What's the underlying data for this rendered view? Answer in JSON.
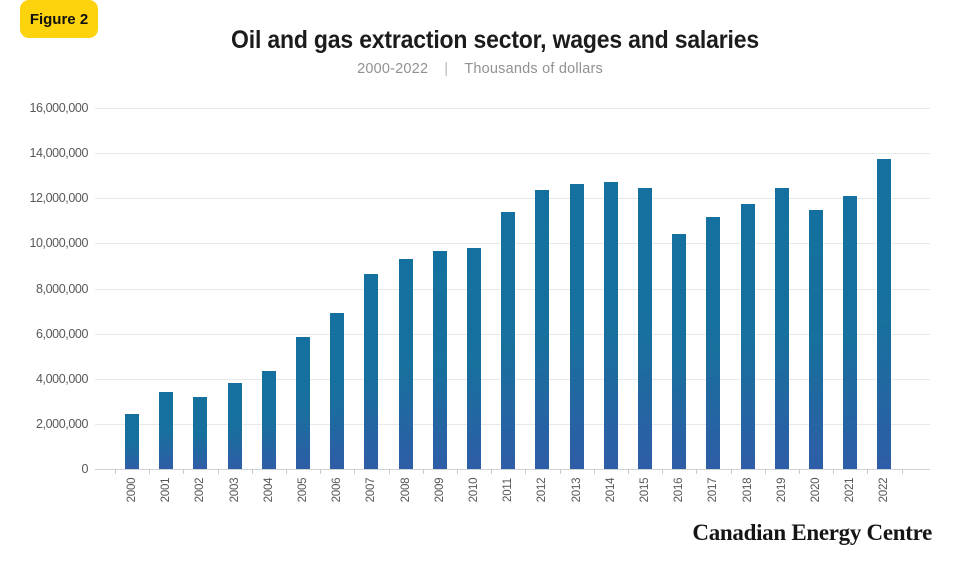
{
  "figure_badge": {
    "label": "Figure 2",
    "bg_color": "#FCD30D",
    "text_color": "#111111"
  },
  "header": {
    "title": "Oil and gas extraction sector, wages and salaries",
    "subtitle_range": "2000-2022",
    "subtitle_separator": "|",
    "subtitle_units": "Thousands of dollars"
  },
  "footer": {
    "brand": "Canadian Energy Centre"
  },
  "colors": {
    "bar_gradient_top": "#14719F",
    "bar_gradient_mid": "#17709D",
    "bar_gradient_bottom": "#2E5DA7",
    "gridline": "#e9e9ea",
    "axis_line": "#cfd1d2",
    "tick": "#c9cbcd",
    "axis_text": "#57585a"
  },
  "chart_data": {
    "type": "bar",
    "title": "Oil and gas extraction sector, wages and salaries",
    "subtitle": "2000-2022 | Thousands of dollars",
    "units": "Thousands of dollars",
    "grid": "horizontal",
    "legend": "none",
    "ylim": [
      0,
      16000000
    ],
    "ytick_step": 2000000,
    "yticks": [
      {
        "v": 16000000,
        "label": "16,000,000"
      },
      {
        "v": 14000000,
        "label": "14,000,000"
      },
      {
        "v": 12000000,
        "label": "12,000,000"
      },
      {
        "v": 10000000,
        "label": "10,000,000"
      },
      {
        "v": 8000000,
        "label": "8,000,000"
      },
      {
        "v": 6000000,
        "label": "6,000,000"
      },
      {
        "v": 4000000,
        "label": "4,000,000"
      },
      {
        "v": 2000000,
        "label": "2,000,000"
      },
      {
        "v": 0,
        "label": "0"
      }
    ],
    "categories": [
      "2000",
      "2001",
      "2002",
      "2003",
      "2004",
      "2005",
      "2006",
      "2007",
      "2008",
      "2009",
      "2010",
      "2011",
      "2012",
      "2013",
      "2014",
      "2015",
      "2016",
      "2017",
      "2018",
      "2019",
      "2020",
      "2021",
      "2022"
    ],
    "values": [
      2450000,
      3400000,
      3200000,
      3800000,
      4350000,
      5850000,
      6900000,
      8650000,
      9300000,
      9650000,
      9800000,
      11400000,
      12350000,
      12650000,
      12700000,
      12450000,
      10400000,
      11150000,
      11750000,
      12450000,
      11500000,
      12100000,
      13750000
    ]
  }
}
